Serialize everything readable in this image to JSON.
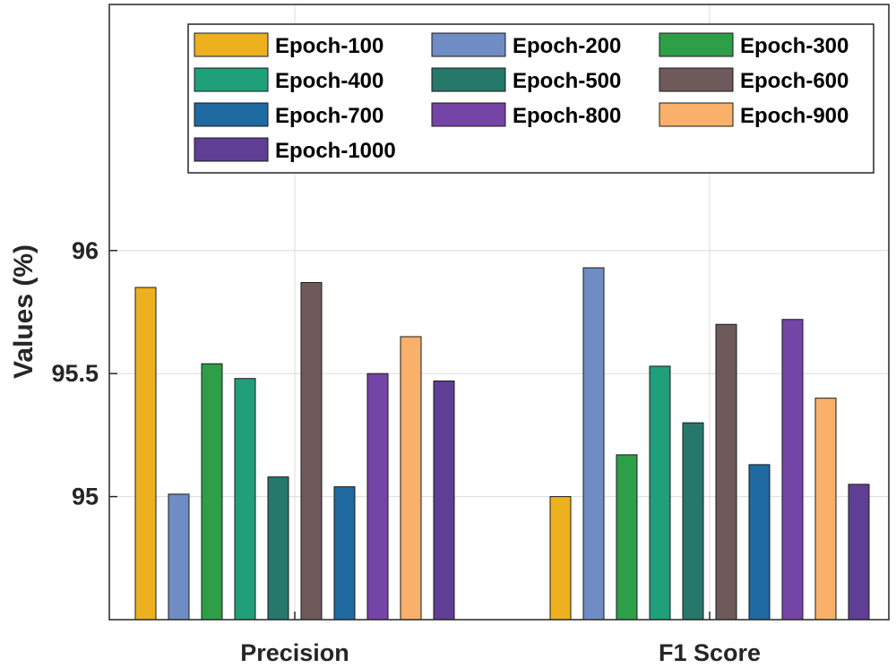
{
  "chart_data": {
    "type": "bar",
    "categories": [
      "Precision",
      "F1 Score"
    ],
    "ylabel": "Values (%)",
    "xlabel": "",
    "ylim": [
      94.5,
      97.0
    ],
    "yticks": [
      95,
      95.5,
      96
    ],
    "ytick_labels": [
      "95",
      "95.5",
      "96"
    ],
    "grid": true,
    "legend_position": "top-right",
    "series": [
      {
        "name": "Epoch-100",
        "color": "#EDB120",
        "values": [
          95.85,
          95.0
        ]
      },
      {
        "name": "Epoch-200",
        "color": "#6F8CC4",
        "values": [
          95.01,
          95.93
        ]
      },
      {
        "name": "Epoch-300",
        "color": "#2E9E48",
        "values": [
          95.54,
          95.17
        ]
      },
      {
        "name": "Epoch-400",
        "color": "#1FA07A",
        "values": [
          95.48,
          95.53
        ]
      },
      {
        "name": "Epoch-500",
        "color": "#26786A",
        "values": [
          95.08,
          95.3
        ]
      },
      {
        "name": "Epoch-600",
        "color": "#6E5A5A",
        "values": [
          95.87,
          95.7
        ]
      },
      {
        "name": "Epoch-700",
        "color": "#1F6AA0",
        "values": [
          95.04,
          95.13
        ]
      },
      {
        "name": "Epoch-800",
        "color": "#7444A6",
        "values": [
          95.5,
          95.72
        ]
      },
      {
        "name": "Epoch-900",
        "color": "#F8B06A",
        "values": [
          95.65,
          95.4
        ]
      },
      {
        "name": "Epoch-1000",
        "color": "#5E3F94",
        "values": [
          95.47,
          95.05
        ]
      }
    ]
  }
}
